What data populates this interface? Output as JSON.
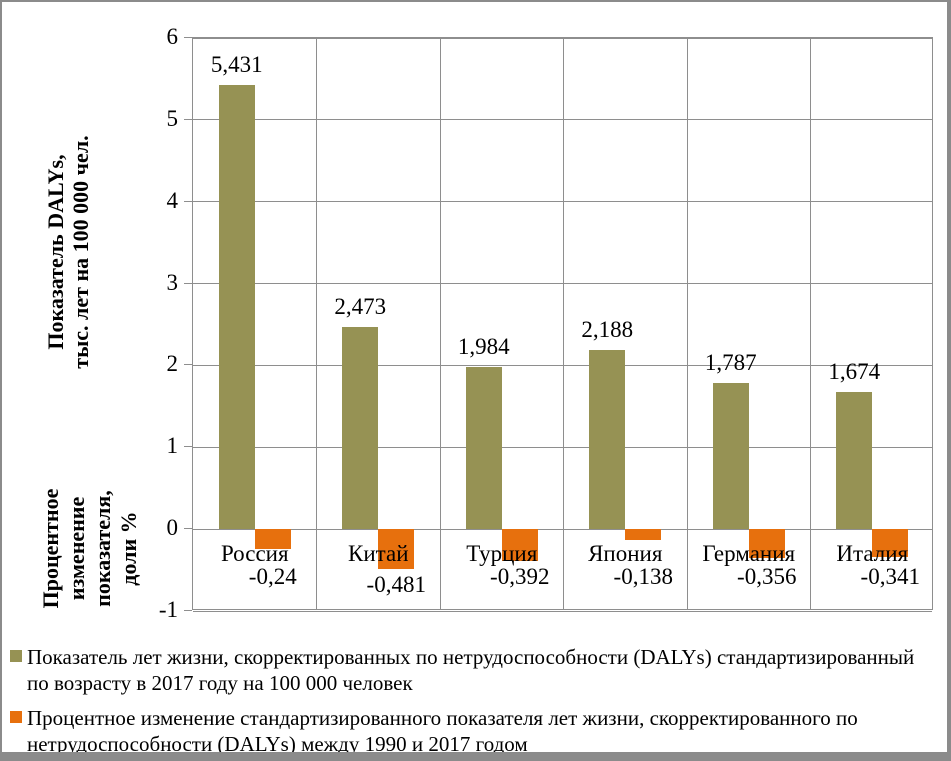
{
  "chart_data": {
    "type": "bar",
    "title": "",
    "categories": [
      "Россия",
      "Китай",
      "Турция",
      "Япония",
      "Германия",
      "Италия"
    ],
    "series": [
      {
        "name": "Показатель лет жизни, скорректированных по нетрудоспособности (DALYs) стандартизированный\nпо возрасту в 2017 году на 100 000 человек",
        "color": "#969254",
        "values": [
          5.431,
          2.473,
          1.984,
          2.188,
          1.787,
          1.674
        ],
        "value_labels": [
          "5,431",
          "2,473",
          "1,984",
          "2,188",
          "1,787",
          "1,674"
        ]
      },
      {
        "name": "Процентное изменение стандартизированного показателя лет жизни, скорректированного по\nнетрудоспособности (DALYs) между 1990 и 2017 годом",
        "color": "#E7700D",
        "values": [
          -0.24,
          -0.481,
          -0.392,
          -0.138,
          -0.356,
          -0.341
        ],
        "value_labels": [
          "-0,24",
          "-0,481",
          "-0,392",
          "-0,138",
          "-0,356",
          "-0,341"
        ]
      }
    ],
    "ylim": [
      -1,
      6
    ],
    "yticks": [
      6,
      5,
      4,
      3,
      2,
      1,
      0,
      -1
    ],
    "ylabel_primary": "Показатель DALYs,\nтыс. лет на 100 000 чел.",
    "ylabel_secondary": "Процентное\nизменение\nпоказателя,\nдоли %",
    "grid": true,
    "legend_position": "bottom-left",
    "colors": {
      "gridline": "#8E8E8E",
      "axis": "#8E8E8E",
      "frame_border": "#8B8B8B",
      "background": "#FFFFFF"
    }
  }
}
